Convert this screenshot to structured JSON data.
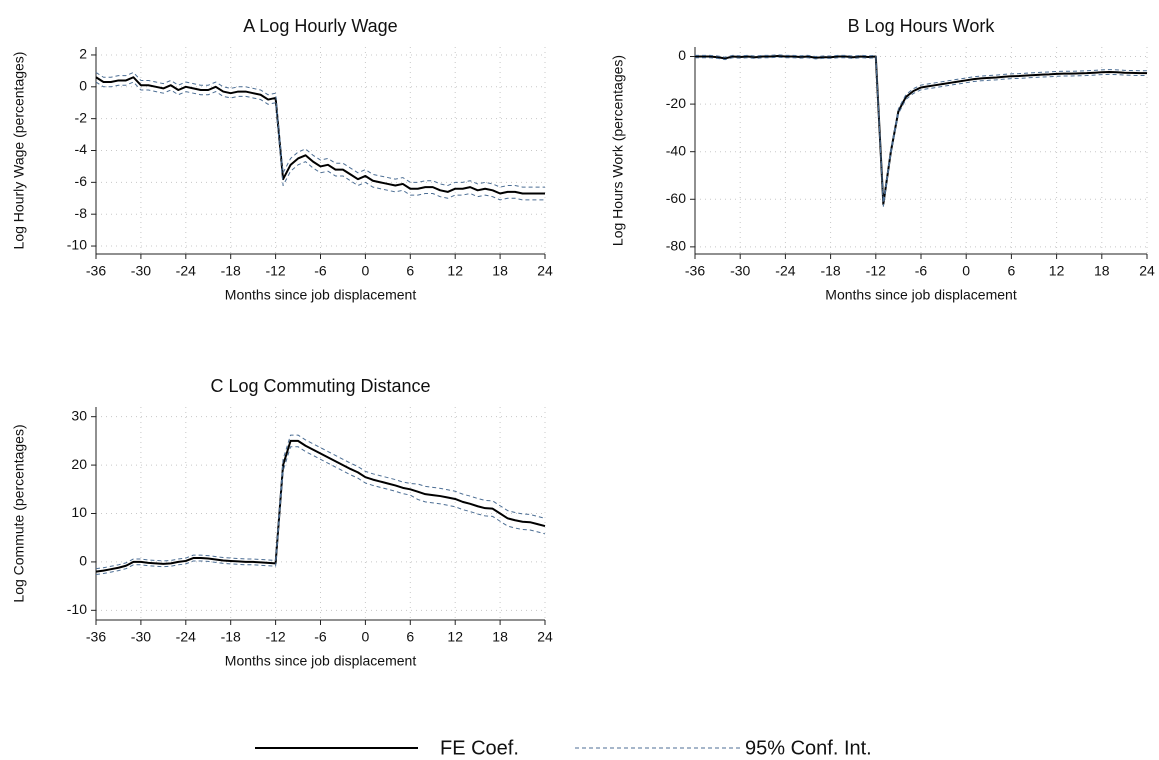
{
  "chart_data": [
    {
      "type": "line",
      "title": "A Log Hourly Wage",
      "x_label": "Months since job displacement",
      "y_label": "Log Hourly Wage (percentages)",
      "x": [
        -36,
        -35,
        -34,
        -33,
        -32,
        -31,
        -30,
        -29,
        -28,
        -27,
        -26,
        -25,
        -24,
        -23,
        -22,
        -21,
        -20,
        -19,
        -18,
        -17,
        -16,
        -15,
        -14,
        -13,
        -12,
        -11,
        -10,
        -9,
        -8,
        -7,
        -6,
        -5,
        -4,
        -3,
        -2,
        -1,
        0,
        1,
        2,
        3,
        4,
        5,
        6,
        7,
        8,
        9,
        10,
        11,
        12,
        13,
        14,
        15,
        16,
        17,
        18,
        19,
        20,
        21,
        22,
        23,
        24
      ],
      "xlim": [
        -36,
        24
      ],
      "xticks": [
        -36,
        -30,
        -24,
        -18,
        -12,
        -6,
        0,
        6,
        12,
        18,
        24
      ],
      "ylim": [
        -10.5,
        2.5
      ],
      "yticks": [
        2,
        0,
        -2,
        -4,
        -6,
        -8,
        -10
      ],
      "grid": true,
      "series": [
        {
          "name": "FE Coef.",
          "color": "#000000",
          "dash": false,
          "values": [
            0.6,
            0.3,
            0.3,
            0.4,
            0.4,
            0.6,
            0.1,
            0.1,
            0.0,
            -0.1,
            0.1,
            -0.2,
            0.0,
            -0.1,
            -0.2,
            -0.2,
            0.0,
            -0.3,
            -0.4,
            -0.3,
            -0.3,
            -0.4,
            -0.5,
            -0.8,
            -0.7,
            -5.8,
            -4.9,
            -4.5,
            -4.3,
            -4.7,
            -5.0,
            -4.9,
            -5.2,
            -5.2,
            -5.5,
            -5.8,
            -5.6,
            -5.9,
            -6.0,
            -6.1,
            -6.2,
            -6.1,
            -6.4,
            -6.4,
            -6.3,
            -6.3,
            -6.5,
            -6.6,
            -6.4,
            -6.4,
            -6.3,
            -6.5,
            -6.4,
            -6.5,
            -6.7,
            -6.6,
            -6.6,
            -6.7,
            -6.7,
            -6.7,
            -6.7
          ]
        },
        {
          "name": "95% Conf. Int.",
          "color": "#4c6e94",
          "dash": true,
          "upper": [
            0.9,
            0.6,
            0.6,
            0.7,
            0.7,
            0.9,
            0.4,
            0.4,
            0.3,
            0.2,
            0.4,
            0.1,
            0.3,
            0.2,
            0.1,
            0.1,
            0.3,
            0.0,
            -0.1,
            0.0,
            0.0,
            -0.1,
            -0.2,
            -0.5,
            -0.4,
            -5.4,
            -4.5,
            -4.1,
            -3.9,
            -4.3,
            -4.6,
            -4.5,
            -4.8,
            -4.8,
            -5.1,
            -5.4,
            -5.2,
            -5.5,
            -5.6,
            -5.7,
            -5.8,
            -5.7,
            -6.0,
            -6.0,
            -5.9,
            -5.9,
            -6.1,
            -6.2,
            -6.0,
            -6.0,
            -5.9,
            -6.1,
            -6.0,
            -6.1,
            -6.3,
            -6.2,
            -6.2,
            -6.3,
            -6.3,
            -6.3,
            -6.3
          ],
          "lower": [
            0.3,
            0.0,
            0.0,
            0.1,
            0.1,
            0.3,
            -0.2,
            -0.2,
            -0.3,
            -0.4,
            -0.2,
            -0.5,
            -0.3,
            -0.4,
            -0.5,
            -0.5,
            -0.3,
            -0.6,
            -0.7,
            -0.6,
            -0.6,
            -0.7,
            -0.8,
            -1.1,
            -1.0,
            -6.2,
            -5.3,
            -4.9,
            -4.7,
            -5.1,
            -5.4,
            -5.3,
            -5.6,
            -5.6,
            -5.9,
            -6.2,
            -6.0,
            -6.3,
            -6.4,
            -6.5,
            -6.6,
            -6.5,
            -6.8,
            -6.8,
            -6.7,
            -6.7,
            -6.9,
            -7.0,
            -6.8,
            -6.8,
            -6.7,
            -6.9,
            -6.8,
            -6.9,
            -7.1,
            -7.0,
            -7.0,
            -7.1,
            -7.1,
            -7.1,
            -7.1
          ]
        }
      ]
    },
    {
      "type": "line",
      "title": "B Log Hours Work",
      "x_label": "Months since job displacement",
      "y_label": "Log Hours Work (percentages)",
      "x": [
        -36,
        -35,
        -34,
        -33,
        -32,
        -31,
        -30,
        -29,
        -28,
        -27,
        -26,
        -25,
        -24,
        -23,
        -22,
        -21,
        -20,
        -19,
        -18,
        -17,
        -16,
        -15,
        -14,
        -13,
        -12,
        -11,
        -10,
        -9,
        -8,
        -7,
        -6,
        -5,
        -4,
        -3,
        -2,
        -1,
        0,
        1,
        2,
        3,
        4,
        5,
        6,
        7,
        8,
        9,
        10,
        11,
        12,
        13,
        14,
        15,
        16,
        17,
        18,
        19,
        20,
        21,
        22,
        23,
        24
      ],
      "xlim": [
        -36,
        24
      ],
      "xticks": [
        -36,
        -30,
        -24,
        -18,
        -12,
        -6,
        0,
        6,
        12,
        18,
        24
      ],
      "ylim": [
        -83,
        4
      ],
      "yticks": [
        0,
        -20,
        -40,
        -60,
        -80
      ],
      "grid": true,
      "series": [
        {
          "name": "FE Coef.",
          "color": "#000000",
          "dash": false,
          "values": [
            0,
            0,
            0,
            -0.3,
            -0.8,
            0,
            -0.2,
            0,
            -0.3,
            0,
            0,
            0.2,
            0,
            0,
            -0.2,
            0,
            -0.5,
            -0.3,
            -0.3,
            0,
            0,
            -0.3,
            0,
            -0.2,
            0,
            -62,
            -40,
            -23,
            -17,
            -14.5,
            -13,
            -12.5,
            -12,
            -11.5,
            -11,
            -10.5,
            -10,
            -9.5,
            -9.2,
            -9,
            -8.8,
            -8.5,
            -8.3,
            -8.2,
            -8,
            -7.8,
            -7.6,
            -7.5,
            -7.3,
            -7.2,
            -7.2,
            -7.1,
            -7,
            -6.8,
            -6.6,
            -6.5,
            -6.6,
            -6.8,
            -6.9,
            -7,
            -7
          ]
        },
        {
          "name": "95% Conf. Int.",
          "color": "#4c6e94",
          "dash": true,
          "upper": [
            0.5,
            0.5,
            0.5,
            0.2,
            -0.3,
            0.5,
            0.3,
            0.5,
            0.2,
            0.5,
            0.5,
            0.7,
            0.5,
            0.5,
            0.3,
            0.5,
            0,
            0.2,
            0.2,
            0.5,
            0.5,
            0.2,
            0.5,
            0.3,
            0.5,
            -61,
            -39,
            -22,
            -16,
            -13.5,
            -12,
            -11.5,
            -11,
            -10.5,
            -10,
            -9.5,
            -9,
            -8.5,
            -8.2,
            -8,
            -7.8,
            -7.5,
            -7.3,
            -7.2,
            -7,
            -6.8,
            -6.6,
            -6.5,
            -6.3,
            -6.2,
            -6.2,
            -6.1,
            -6,
            -5.8,
            -5.6,
            -5.5,
            -5.6,
            -5.8,
            -5.9,
            -6,
            -6
          ],
          "lower": [
            -0.5,
            -0.5,
            -0.5,
            -0.8,
            -1.3,
            -0.5,
            -0.7,
            -0.5,
            -0.8,
            -0.5,
            -0.5,
            -0.3,
            -0.5,
            -0.5,
            -0.7,
            -0.5,
            -1,
            -0.8,
            -0.8,
            -0.5,
            -0.5,
            -0.8,
            -0.5,
            -0.7,
            -0.5,
            -63,
            -41,
            -24,
            -18,
            -15.5,
            -14,
            -13.5,
            -13,
            -12.5,
            -12,
            -11.5,
            -11,
            -10.5,
            -10.2,
            -10,
            -9.8,
            -9.5,
            -9.3,
            -9.2,
            -9,
            -8.8,
            -8.6,
            -8.5,
            -8.3,
            -8.2,
            -8.2,
            -8.1,
            -8,
            -7.8,
            -7.6,
            -7.5,
            -7.6,
            -7.8,
            -7.9,
            -8,
            -8
          ]
        }
      ]
    },
    {
      "type": "line",
      "title": "C Log Commuting Distance",
      "x_label": "Months since job displacement",
      "y_label": "Log Commute (percentages)",
      "x": [
        -36,
        -35,
        -34,
        -33,
        -32,
        -31,
        -30,
        -29,
        -28,
        -27,
        -26,
        -25,
        -24,
        -23,
        -22,
        -21,
        -20,
        -19,
        -18,
        -17,
        -16,
        -15,
        -14,
        -13,
        -12,
        -11,
        -10,
        -9,
        -8,
        -7,
        -6,
        -5,
        -4,
        -3,
        -2,
        -1,
        0,
        1,
        2,
        3,
        4,
        5,
        6,
        7,
        8,
        9,
        10,
        11,
        12,
        13,
        14,
        15,
        16,
        17,
        18,
        19,
        20,
        21,
        22,
        23,
        24
      ],
      "xlim": [
        -36,
        24
      ],
      "xticks": [
        -36,
        -30,
        -24,
        -18,
        -12,
        -6,
        0,
        6,
        12,
        18,
        24
      ],
      "ylim": [
        -12,
        32
      ],
      "yticks": [
        30,
        20,
        10,
        0,
        -10
      ],
      "grid": true,
      "series": [
        {
          "name": "FE Coef.",
          "color": "#000000",
          "dash": false,
          "values": [
            -2,
            -1.8,
            -1.5,
            -1.2,
            -0.8,
            0,
            0,
            -0.2,
            -0.3,
            -0.4,
            -0.3,
            0,
            0.2,
            0.8,
            0.8,
            0.7,
            0.5,
            0.3,
            0.2,
            0.1,
            0,
            0,
            -0.1,
            -0.2,
            -0.3,
            20,
            25,
            25,
            24,
            23.2,
            22.4,
            21.6,
            20.8,
            20,
            19.2,
            18.5,
            17.5,
            17,
            16.6,
            16.2,
            15.8,
            15.3,
            15,
            14.5,
            14,
            13.8,
            13.6,
            13.3,
            13,
            12.4,
            12,
            11.5,
            11.1,
            11,
            10,
            9,
            8.6,
            8.3,
            8.2,
            7.8,
            7.4
          ]
        },
        {
          "name": "95% Conf. Int.",
          "color": "#4c6e94",
          "dash": true,
          "upper": [
            -1.4,
            -1.2,
            -0.9,
            -0.6,
            -0.2,
            0.6,
            0.6,
            0.4,
            0.3,
            0.2,
            0.3,
            0.6,
            0.8,
            1.4,
            1.4,
            1.3,
            1.1,
            0.9,
            0.8,
            0.7,
            0.6,
            0.6,
            0.5,
            0.4,
            0.3,
            21.2,
            26.2,
            26.2,
            25.2,
            24.4,
            23.6,
            22.8,
            22,
            21.2,
            20.4,
            19.7,
            18.7,
            18.2,
            17.8,
            17.4,
            17,
            16.5,
            16.2,
            16.1,
            15.6,
            15.4,
            15.2,
            14.9,
            14.6,
            14,
            13.6,
            13.1,
            12.7,
            12.6,
            11.6,
            10.6,
            10.2,
            9.9,
            9.8,
            9.4,
            9.0
          ],
          "lower": [
            -2.6,
            -2.4,
            -2.1,
            -1.8,
            -1.4,
            -0.6,
            -0.6,
            -0.8,
            -0.9,
            -1.0,
            -0.9,
            -0.6,
            -0.4,
            0.2,
            0.2,
            0.1,
            -0.1,
            -0.3,
            -0.4,
            -0.5,
            -0.6,
            -0.6,
            -0.7,
            -0.8,
            -0.9,
            18.8,
            23.8,
            23.8,
            22.8,
            22,
            21.2,
            20.4,
            19.6,
            18.8,
            18,
            17.3,
            16.3,
            15.8,
            15.4,
            15,
            14.6,
            14.1,
            13.8,
            12.9,
            12.4,
            12.2,
            12,
            11.7,
            11.4,
            10.8,
            10.4,
            9.9,
            9.5,
            9.4,
            8.4,
            7.4,
            7,
            6.7,
            6.6,
            6.2,
            5.8
          ]
        }
      ]
    }
  ]
}
